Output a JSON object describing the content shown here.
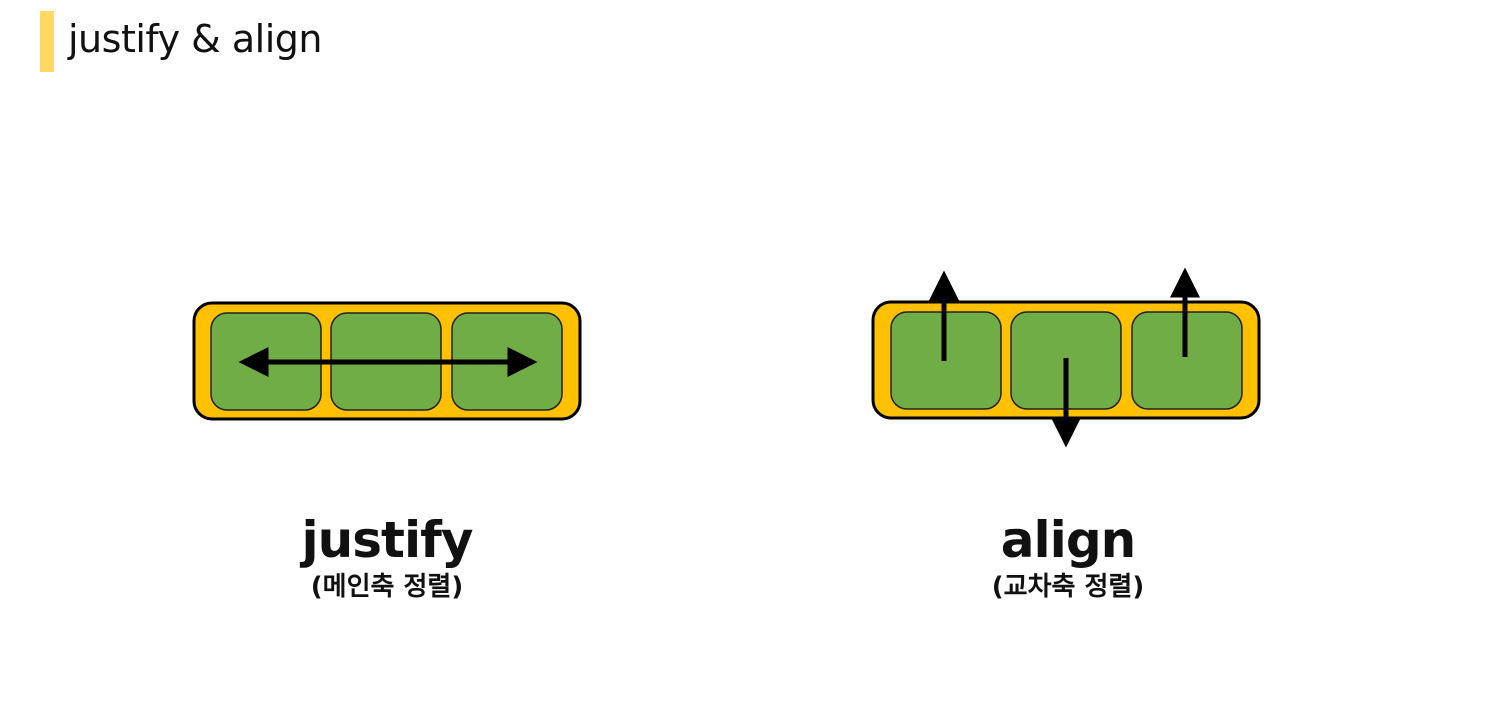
{
  "header": {
    "title": "justify & align",
    "accent_color": "#ffd966"
  },
  "colors": {
    "container_fill": "#ffc000",
    "item_fill": "#70ad47",
    "stroke": "#000000"
  },
  "diagrams": {
    "justify": {
      "label": "justify",
      "sublabel": "(메인축 정렬)",
      "arrow": "double-horizontal-arrow"
    },
    "align": {
      "label": "align",
      "sublabel": "(교차축 정렬)",
      "arrows": [
        "up-arrow",
        "down-arrow",
        "up-arrow"
      ]
    }
  }
}
